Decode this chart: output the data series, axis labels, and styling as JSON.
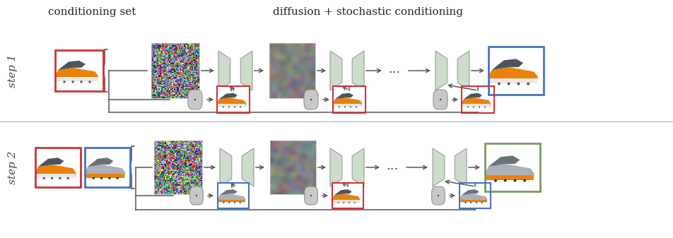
{
  "title_left": "conditioning set",
  "title_right": "diffusion + stochastic conditioning",
  "step1_label": "step 1",
  "step2_label": "step 2",
  "bg_color": "#ffffff",
  "text_color": "#333333",
  "unet_fill": "#cddccb",
  "unet_edge": "#999999",
  "red_box": "#cc3333",
  "blue_box": "#4472c4",
  "green_box": "#7a9960",
  "separator_color": "#aaaaaa",
  "arrow_color": "#555555",
  "dots_text": "...",
  "fig_width": 9.52,
  "fig_height": 3.37,
  "dpi": 100
}
